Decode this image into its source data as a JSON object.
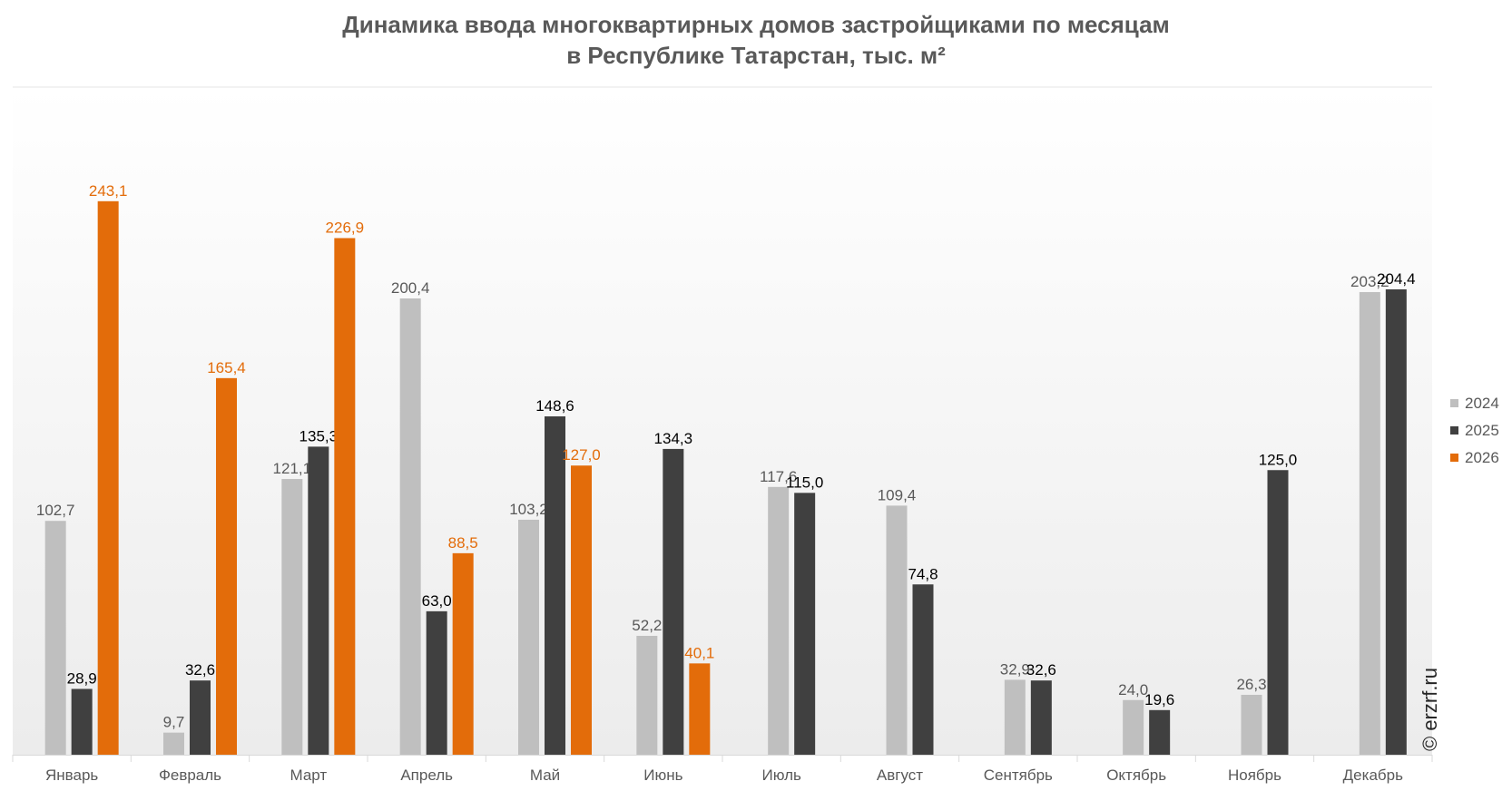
{
  "chart_data": {
    "type": "bar",
    "title": [
      "Динамика ввода многоквартирных домов застройщиками по месяцам",
      "в Республике Татарстан, тыс. м²"
    ],
    "categories": [
      "Январь",
      "Февраль",
      "Март",
      "Апрель",
      "Май",
      "Июнь",
      "Июль",
      "Август",
      "Сентябрь",
      "Октябрь",
      "Ноябрь",
      "Декабрь"
    ],
    "series": [
      {
        "name": "2024",
        "color": "#bfbfbf",
        "label_color": "#595959",
        "values": [
          102.7,
          9.7,
          121.1,
          200.4,
          103.2,
          52.2,
          117.6,
          109.4,
          32.9,
          24.0,
          26.3,
          203.2
        ],
        "labels": [
          "102,7",
          "9,7",
          "121,1",
          "200,4",
          "103,2",
          "52,2",
          "117,6",
          "109,4",
          "32,9",
          "24,0",
          "26,3",
          "203,2"
        ]
      },
      {
        "name": "2025",
        "color": "#404040",
        "label_color": "#000000",
        "values": [
          28.9,
          32.6,
          135.3,
          63.0,
          148.6,
          134.3,
          115.0,
          74.8,
          32.6,
          19.6,
          125.0,
          204.4
        ],
        "labels": [
          "28,9",
          "32,6",
          "135,3",
          "63,0",
          "148,6",
          "134,3",
          "115,0",
          "74,8",
          "32,6",
          "19,6",
          "125,0",
          "204,4"
        ]
      },
      {
        "name": "2026",
        "color": "#e36c0a",
        "label_color": "#e36c0a",
        "values": [
          243.1,
          165.4,
          226.9,
          88.5,
          127.0,
          40.1,
          null,
          null,
          null,
          null,
          null,
          null
        ],
        "labels": [
          "243,1",
          "165,4",
          "226,9",
          "88,5",
          "127,0",
          "40,1",
          "",
          "",
          "",
          "",
          "",
          ""
        ]
      }
    ],
    "ylim": [
      0,
      270
    ],
    "grid": false,
    "legend": "right"
  },
  "watermark": "© erzrf.ru"
}
